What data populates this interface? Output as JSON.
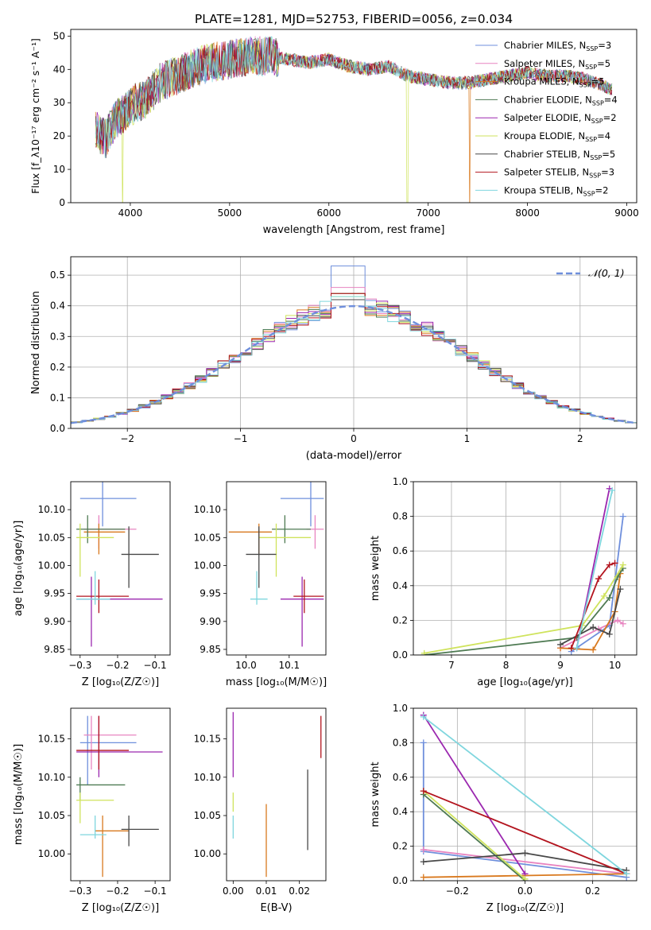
{
  "title": "PLATE=1281, MJD=52753, FIBERID=0056, z=0.034",
  "colors": {
    "Chabrier MILES": "#6f8fdc",
    "Salpeter MILES": "#e884c0",
    "Kroupa MILES": "#d9791e",
    "Chabrier ELODIE": "#4e7a52",
    "Salpeter ELODIE": "#9b27af",
    "Kroupa ELODIE": "#cfe35c",
    "Chabrier STELIB": "#484848",
    "Salpeter STELIB": "#b3141e",
    "Kroupa STELIB": "#7fd6de"
  },
  "chart_data": [
    {
      "id": "spectrum",
      "type": "line",
      "xlabel": "wavelength [Angstrom, rest frame]",
      "ylabel": "Flux [f_λ10⁻¹⁷ erg cm⁻² s⁻¹ A⁻¹]",
      "xlim": [
        3400,
        9100
      ],
      "ylim": [
        0,
        52
      ],
      "xticks": [
        4000,
        5000,
        6000,
        7000,
        8000,
        9000
      ],
      "yticks": [
        0,
        10,
        20,
        30,
        40,
        50
      ],
      "legend_position": "upper right",
      "legend": [
        {
          "prefix": "Chabrier MILES, N",
          "sub": "SSP",
          "suffix": "=3",
          "model": "Chabrier MILES"
        },
        {
          "prefix": "Salpeter MILES, N",
          "sub": "SSP",
          "suffix": "=5",
          "model": "Salpeter MILES"
        },
        {
          "prefix": "Kroupa MILES, N",
          "sub": "SSP",
          "suffix": "=5",
          "model": "Kroupa MILES"
        },
        {
          "prefix": "Chabrier ELODIE, N",
          "sub": "SSP",
          "suffix": "=4",
          "model": "Chabrier ELODIE"
        },
        {
          "prefix": "Salpeter ELODIE, N",
          "sub": "SSP",
          "suffix": "=2",
          "model": "Salpeter ELODIE"
        },
        {
          "prefix": "Kroupa ELODIE, N",
          "sub": "SSP",
          "suffix": "=4",
          "model": "Kroupa ELODIE"
        },
        {
          "prefix": "Chabrier STELIB, N",
          "sub": "SSP",
          "suffix": "=5",
          "model": "Chabrier STELIB"
        },
        {
          "prefix": "Salpeter STELIB, N",
          "sub": "SSP",
          "suffix": "=3",
          "model": "Salpeter STELIB"
        },
        {
          "prefix": "Kroupa STELIB, N",
          "sub": "SSP",
          "suffix": "=2",
          "model": "Kroupa STELIB"
        }
      ],
      "envelope": {
        "x": [
          3650,
          3750,
          3850,
          3950,
          4050,
          4150,
          4300,
          4450,
          4600,
          4800,
          5000,
          5200,
          5400,
          5600,
          5800,
          6000,
          6200,
          6400,
          6600,
          6800,
          7000,
          7200,
          7400,
          7600,
          7800,
          8000,
          8200,
          8400,
          8600,
          8850
        ],
        "y": [
          22,
          19,
          25,
          27,
          30,
          31,
          36,
          38,
          40,
          42,
          43,
          44,
          44,
          43,
          42,
          43,
          41,
          40,
          41,
          38,
          37,
          36,
          36,
          37,
          38,
          39,
          38,
          38,
          37,
          34
        ]
      },
      "dropouts": [
        {
          "x": 3920,
          "model": "Kroupa ELODIE"
        },
        {
          "x": 6790,
          "model": "Kroupa ELODIE"
        },
        {
          "x": 7420,
          "model": "Kroupa MILES"
        }
      ]
    },
    {
      "id": "residuals",
      "type": "step-histogram",
      "xlabel": "(data-model)/error",
      "ylabel": "Normed distribution",
      "xlim": [
        -2.5,
        2.5
      ],
      "ylim": [
        0,
        0.56
      ],
      "xticks": [
        -2,
        -1,
        0,
        1,
        2
      ],
      "yticks": [
        0.0,
        0.1,
        0.2,
        0.3,
        0.4,
        0.5
      ],
      "reference_curve_label": "𝒩(0, 1)",
      "reference_curve": "gaussian mean 0 sigma 1",
      "bin_width": 0.1,
      "histograms": [
        {
          "model": "Chabrier MILES",
          "peak": 0.53
        },
        {
          "model": "Salpeter MILES",
          "peak": 0.46
        },
        {
          "model": "Kroupa MILES",
          "peak": 0.44
        },
        {
          "model": "Chabrier ELODIE",
          "peak": 0.44
        },
        {
          "model": "Salpeter ELODIE",
          "peak": 0.42
        },
        {
          "model": "Kroupa ELODIE",
          "peak": 0.43
        },
        {
          "model": "Chabrier STELIB",
          "peak": 0.42
        },
        {
          "model": "Salpeter STELIB",
          "peak": 0.44
        },
        {
          "model": "Kroupa STELIB",
          "peak": 0.43
        }
      ]
    },
    {
      "id": "age_vs_Z",
      "type": "errorbar",
      "xlabel": "Z [log₁₀(Z/Z☉)]",
      "ylabel": "age  [log₁₀(age/yr)]",
      "xlim": [
        -0.325,
        -0.06
      ],
      "ylim": [
        9.84,
        10.15
      ],
      "xticks": [
        -0.3,
        -0.2,
        -0.1
      ],
      "yticks": [
        9.85,
        9.9,
        9.95,
        10.0,
        10.05,
        10.1
      ],
      "points": [
        {
          "model": "Chabrier MILES",
          "x": -0.24,
          "xlo": -0.3,
          "xhi": -0.15,
          "y": 10.12,
          "ylo": 10.07,
          "yhi": 10.17
        },
        {
          "model": "Salpeter MILES",
          "x": -0.25,
          "xlo": -0.29,
          "xhi": -0.15,
          "y": 10.065,
          "ylo": 10.03,
          "yhi": 10.09
        },
        {
          "model": "Kroupa MILES",
          "x": -0.25,
          "xlo": -0.29,
          "xhi": -0.18,
          "y": 10.06,
          "ylo": 10.02,
          "yhi": 10.075
        },
        {
          "model": "Chabrier ELODIE",
          "x": -0.28,
          "xlo": -0.31,
          "xhi": -0.18,
          "y": 10.065,
          "ylo": 10.04,
          "yhi": 10.09
        },
        {
          "model": "Salpeter ELODIE",
          "x": -0.27,
          "xlo": -0.31,
          "xhi": -0.08,
          "y": 9.94,
          "ylo": 9.855,
          "yhi": 9.98
        },
        {
          "model": "Kroupa ELODIE",
          "x": -0.3,
          "xlo": -0.31,
          "xhi": -0.21,
          "y": 10.05,
          "ylo": 9.98,
          "yhi": 10.075
        },
        {
          "model": "Chabrier STELIB",
          "x": -0.17,
          "xlo": -0.19,
          "xhi": -0.09,
          "y": 10.02,
          "ylo": 9.96,
          "yhi": 10.07
        },
        {
          "model": "Salpeter STELIB",
          "x": -0.25,
          "xlo": -0.31,
          "xhi": -0.17,
          "y": 9.945,
          "ylo": 9.915,
          "yhi": 9.975
        },
        {
          "model": "Kroupa STELIB",
          "x": -0.26,
          "xlo": -0.31,
          "xhi": -0.22,
          "y": 9.94,
          "ylo": 9.93,
          "yhi": 9.99
        }
      ]
    },
    {
      "id": "age_vs_mass",
      "type": "errorbar",
      "xlabel": "mass [log₁₀(M/M☉)]",
      "ylabel": "",
      "xlim": [
        9.955,
        10.185
      ],
      "ylim": [
        9.84,
        10.15
      ],
      "xticks": [
        10.0,
        10.1
      ],
      "yticks": [
        9.85,
        9.9,
        9.95,
        10.0,
        10.05,
        10.1
      ],
      "points": [
        {
          "model": "Chabrier MILES",
          "x": 10.15,
          "xlo": 10.08,
          "xhi": 10.18,
          "y": 10.12,
          "ylo": 10.07,
          "yhi": 10.17
        },
        {
          "model": "Salpeter MILES",
          "x": 10.16,
          "xlo": 10.14,
          "xhi": 10.18,
          "y": 10.065,
          "ylo": 10.03,
          "yhi": 10.09
        },
        {
          "model": "Kroupa MILES",
          "x": 10.03,
          "xlo": 9.96,
          "xhi": 10.06,
          "y": 10.06,
          "ylo": 10.02,
          "yhi": 10.075
        },
        {
          "model": "Chabrier ELODIE",
          "x": 10.09,
          "xlo": 10.06,
          "xhi": 10.15,
          "y": 10.065,
          "ylo": 10.04,
          "yhi": 10.09
        },
        {
          "model": "Salpeter ELODIE",
          "x": 10.13,
          "xlo": 10.08,
          "xhi": 10.18,
          "y": 9.94,
          "ylo": 9.855,
          "yhi": 9.98
        },
        {
          "model": "Kroupa ELODIE",
          "x": 10.07,
          "xlo": 10.03,
          "xhi": 10.15,
          "y": 10.05,
          "ylo": 9.98,
          "yhi": 10.075
        },
        {
          "model": "Chabrier STELIB",
          "x": 10.03,
          "xlo": 10.0,
          "xhi": 10.07,
          "y": 10.02,
          "ylo": 9.96,
          "yhi": 10.07
        },
        {
          "model": "Salpeter STELIB",
          "x": 10.135,
          "xlo": 10.11,
          "xhi": 10.18,
          "y": 9.945,
          "ylo": 9.915,
          "yhi": 9.975
        },
        {
          "model": "Kroupa STELIB",
          "x": 10.025,
          "xlo": 10.01,
          "xhi": 10.05,
          "y": 9.94,
          "ylo": 9.93,
          "yhi": 9.99
        }
      ]
    },
    {
      "id": "weight_vs_age",
      "type": "line",
      "xlabel": "age  [log₁₀(age/yr)]",
      "ylabel": "mass weight",
      "xlim": [
        6.3,
        10.4
      ],
      "ylim": [
        0,
        1.0
      ],
      "xticks": [
        7,
        8,
        9,
        10
      ],
      "yticks": [
        0.0,
        0.2,
        0.4,
        0.6,
        0.8,
        1.0
      ],
      "grid": true,
      "series": [
        {
          "model": "Chabrier MILES",
          "x": [
            9.2,
            9.9,
            10.15
          ],
          "y": [
            0.02,
            0.17,
            0.8
          ]
        },
        {
          "model": "Salpeter MILES",
          "x": [
            9.0,
            9.7,
            10.05,
            10.15
          ],
          "y": [
            0.04,
            0.15,
            0.2,
            0.18
          ]
        },
        {
          "model": "Kroupa MILES",
          "x": [
            9.0,
            9.6,
            10.0,
            10.1
          ],
          "y": [
            0.04,
            0.03,
            0.25,
            0.47
          ]
        },
        {
          "model": "Chabrier ELODIE",
          "x": [
            6.5,
            9.3,
            9.9,
            10.05,
            10.15
          ],
          "y": [
            0.0,
            0.1,
            0.33,
            0.45,
            0.5
          ]
        },
        {
          "model": "Salpeter ELODIE",
          "x": [
            9.3,
            9.9
          ],
          "y": [
            0.04,
            0.96
          ]
        },
        {
          "model": "Kroupa ELODIE",
          "x": [
            6.5,
            9.4,
            9.8,
            10.15
          ],
          "y": [
            0.01,
            0.17,
            0.34,
            0.52
          ]
        },
        {
          "model": "Chabrier STELIB",
          "x": [
            9.0,
            9.6,
            9.9,
            10.1
          ],
          "y": [
            0.06,
            0.16,
            0.12,
            0.38
          ]
        },
        {
          "model": "Salpeter STELIB",
          "x": [
            9.2,
            9.7,
            9.9,
            10.0
          ],
          "y": [
            0.04,
            0.44,
            0.52,
            0.53
          ]
        },
        {
          "model": "Kroupa STELIB",
          "x": [
            9.3,
            9.95
          ],
          "y": [
            0.04,
            0.95
          ]
        }
      ]
    },
    {
      "id": "mass_vs_Z",
      "type": "errorbar",
      "xlabel": "Z [log₁₀(Z/Z☉)]",
      "ylabel": "mass [log₁₀(M/M☉)]",
      "xlim": [
        -0.325,
        -0.06
      ],
      "ylim": [
        9.965,
        10.19
      ],
      "xticks": [
        -0.3,
        -0.2,
        -0.1
      ],
      "yticks": [
        10.0,
        10.05,
        10.1,
        10.15
      ],
      "points": [
        {
          "model": "Chabrier MILES",
          "x": -0.28,
          "xlo": -0.3,
          "xhi": -0.15,
          "y": 10.145,
          "ylo": 10.09,
          "yhi": 10.18
        },
        {
          "model": "Salpeter MILES",
          "x": -0.27,
          "xlo": -0.29,
          "xhi": -0.15,
          "y": 10.155,
          "ylo": 10.11,
          "yhi": 10.18
        },
        {
          "model": "Kroupa MILES",
          "x": -0.24,
          "xlo": -0.26,
          "xhi": -0.17,
          "y": 10.03,
          "ylo": 9.97,
          "yhi": 10.05
        },
        {
          "model": "Chabrier ELODIE",
          "x": -0.3,
          "xlo": -0.31,
          "xhi": -0.18,
          "y": 10.09,
          "ylo": 10.07,
          "yhi": 10.1
        },
        {
          "model": "Salpeter ELODIE",
          "x": -0.25,
          "xlo": -0.31,
          "xhi": -0.08,
          "y": 10.133,
          "ylo": 10.1,
          "yhi": 10.18
        },
        {
          "model": "Kroupa ELODIE",
          "x": -0.3,
          "xlo": -0.31,
          "xhi": -0.21,
          "y": 10.07,
          "ylo": 10.04,
          "yhi": 10.08
        },
        {
          "model": "Chabrier STELIB",
          "x": -0.17,
          "xlo": -0.19,
          "xhi": -0.09,
          "y": 10.032,
          "ylo": 10.01,
          "yhi": 10.05
        },
        {
          "model": "Salpeter STELIB",
          "x": -0.25,
          "xlo": -0.31,
          "xhi": -0.17,
          "y": 10.135,
          "ylo": 10.11,
          "yhi": 10.18
        },
        {
          "model": "Kroupa STELIB",
          "x": -0.26,
          "xlo": -0.3,
          "xhi": -0.23,
          "y": 10.025,
          "ylo": 10.02,
          "yhi": 10.05
        }
      ]
    },
    {
      "id": "mass_vs_ebv",
      "type": "errorbar",
      "xlabel": "E(B-V)",
      "ylabel": "",
      "xlim": [
        -0.002,
        0.028
      ],
      "ylim": [
        9.965,
        10.19
      ],
      "xticks": [
        0.0,
        0.01,
        0.02
      ],
      "yticks": [
        10.0,
        10.05,
        10.1,
        10.15
      ],
      "points": [
        {
          "model": "Salpeter ELODIE",
          "x": 0.0,
          "xlo": 0.0,
          "xhi": 0.0,
          "y": 10.15,
          "ylo": 10.1,
          "yhi": 10.185
        },
        {
          "model": "Kroupa ELODIE",
          "x": 0.0,
          "xlo": 0.0,
          "xhi": 0.0,
          "y": 10.07,
          "ylo": 10.055,
          "yhi": 10.08
        },
        {
          "model": "Kroupa STELIB",
          "x": 0.0,
          "xlo": 0.0,
          "xhi": 0.0,
          "y": 10.035,
          "ylo": 10.02,
          "yhi": 10.05
        },
        {
          "model": "Kroupa MILES",
          "x": 0.01,
          "xlo": 0.01,
          "xhi": 0.01,
          "y": 10.02,
          "ylo": 9.97,
          "yhi": 10.065
        },
        {
          "model": "Chabrier STELIB",
          "x": 0.0225,
          "xlo": 0.0225,
          "xhi": 0.0225,
          "y": 10.06,
          "ylo": 10.005,
          "yhi": 10.11
        },
        {
          "model": "Salpeter STELIB",
          "x": 0.0265,
          "xlo": 0.0265,
          "xhi": 0.0265,
          "y": 10.15,
          "ylo": 10.125,
          "yhi": 10.18
        }
      ]
    },
    {
      "id": "weight_vs_Z",
      "type": "line",
      "xlabel": "Z [log₁₀(Z/Z☉)]",
      "ylabel": "mass weight",
      "xlim": [
        -0.33,
        0.33
      ],
      "ylim": [
        0,
        1.0
      ],
      "xticks": [
        -0.2,
        0.0,
        0.2
      ],
      "yticks": [
        0.0,
        0.2,
        0.4,
        0.6,
        0.8,
        1.0
      ],
      "grid": true,
      "series": [
        {
          "model": "Chabrier MILES",
          "x": [
            -0.3,
            -0.3,
            0.3
          ],
          "y": [
            0.8,
            0.17,
            0.02
          ]
        },
        {
          "model": "Salpeter MILES",
          "x": [
            -0.3,
            0.3
          ],
          "y": [
            0.18,
            0.04
          ]
        },
        {
          "model": "Kroupa MILES",
          "x": [
            -0.3,
            0.0,
            0.3
          ],
          "y": [
            0.02,
            0.03,
            0.04
          ]
        },
        {
          "model": "Chabrier ELODIE",
          "x": [
            -0.3,
            0.0
          ],
          "y": [
            0.5,
            0.0
          ]
        },
        {
          "model": "Salpeter ELODIE",
          "x": [
            -0.3,
            0.0
          ],
          "y": [
            0.96,
            0.04
          ]
        },
        {
          "model": "Kroupa ELODIE",
          "x": [
            -0.3,
            0.0
          ],
          "y": [
            0.52,
            0.01
          ]
        },
        {
          "model": "Chabrier STELIB",
          "x": [
            -0.3,
            0.0,
            0.3
          ],
          "y": [
            0.11,
            0.16,
            0.06
          ]
        },
        {
          "model": "Salpeter STELIB",
          "x": [
            -0.3,
            0.3
          ],
          "y": [
            0.52,
            0.04
          ]
        },
        {
          "model": "Kroupa STELIB",
          "x": [
            -0.3,
            0.3
          ],
          "y": [
            0.95,
            0.04
          ]
        }
      ]
    }
  ]
}
